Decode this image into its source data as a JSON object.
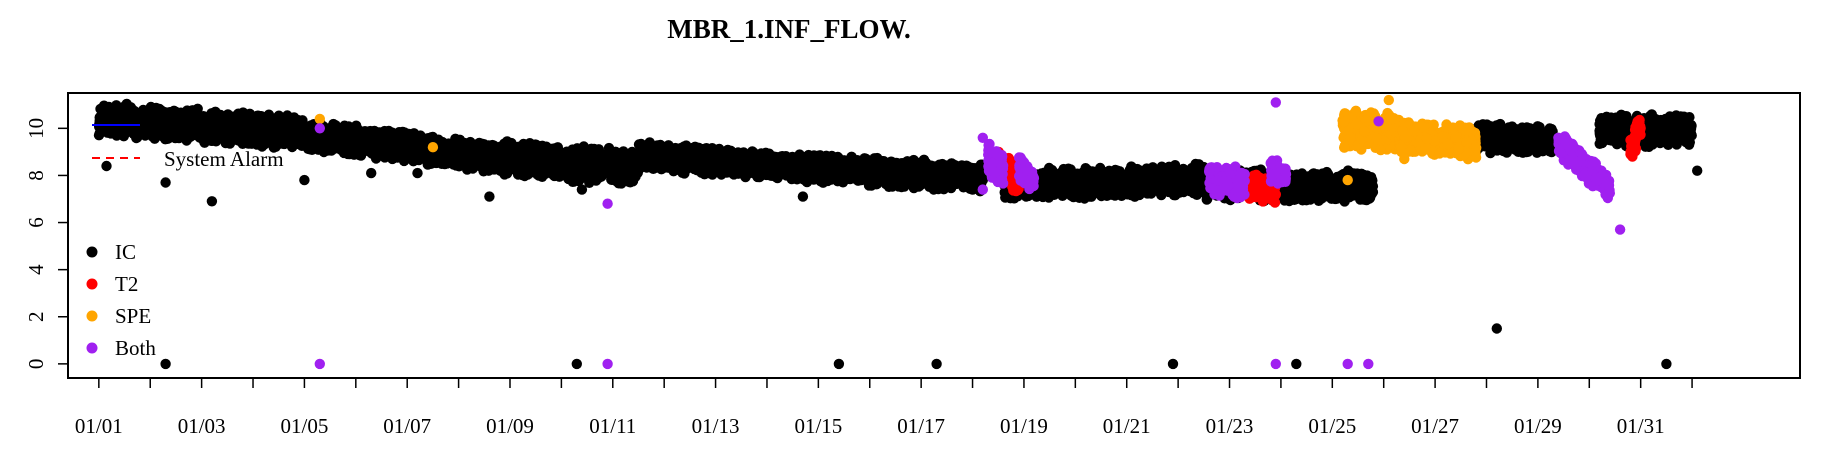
{
  "chart_data": {
    "type": "scatter",
    "title": "MBR_1.INF_FLOW.",
    "xlabel": "",
    "ylabel": "",
    "ylim": [
      -0.6,
      11.5
    ],
    "xlim": [
      -0.6,
      33.1
    ],
    "y_ticks": [
      0,
      2,
      4,
      6,
      8,
      10
    ],
    "x_tick_labels": [
      "01/01",
      "01/03",
      "01/05",
      "01/07",
      "01/09",
      "01/11",
      "01/13",
      "01/15",
      "01/17",
      "01/19",
      "01/21",
      "01/23",
      "01/25",
      "01/27",
      "01/29",
      "01/31"
    ],
    "x_tick_days": [
      0,
      1,
      2,
      3,
      4,
      5,
      6,
      7,
      8,
      9,
      10,
      11,
      12,
      13,
      14,
      15,
      16,
      17,
      18,
      19,
      20,
      21,
      22,
      23,
      24,
      25,
      26,
      27,
      28,
      29,
      30,
      31
    ],
    "x_label_days": [
      0,
      2,
      4,
      6,
      8,
      10,
      12,
      14,
      16,
      18,
      20,
      22,
      24,
      26,
      28,
      30
    ],
    "grid": false,
    "legend": {
      "placement": "left",
      "line_entries": [
        {
          "label": "System Alarm",
          "color": "#ff0000",
          "style": "dashed"
        },
        {
          "label": "",
          "color": "#0000ff",
          "style": "solid"
        }
      ],
      "point_entries": [
        {
          "label": "IC",
          "color": "#000000"
        },
        {
          "label": "T2",
          "color": "#ff0000"
        },
        {
          "label": "SPE",
          "color": "#ffa500"
        },
        {
          "label": "Both",
          "color": "#a020f0"
        }
      ]
    },
    "series": [
      {
        "name": "IC",
        "color": "#000000",
        "segments": [
          {
            "x0": 0.0,
            "x1": 4.0,
            "y0": 10.4,
            "y1": 9.8,
            "spread": 0.75
          },
          {
            "x0": 4.0,
            "x1": 7.5,
            "y0": 9.7,
            "y1": 8.8,
            "spread": 0.7
          },
          {
            "x0": 7.5,
            "x1": 10.5,
            "y0": 8.8,
            "y1": 8.3,
            "spread": 0.8
          },
          {
            "x0": 10.5,
            "x1": 14.0,
            "y0": 8.8,
            "y1": 8.3,
            "spread": 0.65
          },
          {
            "x0": 14.0,
            "x1": 17.2,
            "y0": 8.3,
            "y1": 7.9,
            "spread": 0.65
          },
          {
            "x0": 17.6,
            "x1": 21.5,
            "y0": 7.6,
            "y1": 7.8,
            "spread": 0.7
          },
          {
            "x0": 21.5,
            "x1": 24.8,
            "y0": 7.6,
            "y1": 7.5,
            "spread": 0.7
          },
          {
            "x0": 26.8,
            "x1": 28.3,
            "y0": 9.6,
            "y1": 9.5,
            "spread": 0.65
          },
          {
            "x0": 29.2,
            "x1": 31.0,
            "y0": 9.9,
            "y1": 9.9,
            "spread": 0.75
          }
        ],
        "points": [
          [
            0.15,
            8.4
          ],
          [
            1.3,
            7.7
          ],
          [
            2.2,
            6.9
          ],
          [
            4.0,
            7.8
          ],
          [
            5.3,
            8.1
          ],
          [
            6.2,
            8.1
          ],
          [
            7.6,
            7.1
          ],
          [
            9.4,
            7.4
          ],
          [
            13.7,
            7.1
          ],
          [
            31.1,
            8.2
          ],
          [
            1.3,
            0.0
          ],
          [
            9.3,
            0.0
          ],
          [
            14.4,
            0.0
          ],
          [
            16.3,
            0.0
          ],
          [
            20.9,
            0.0
          ],
          [
            23.3,
            0.0
          ],
          [
            27.2,
            1.5
          ],
          [
            30.5,
            0.0
          ]
        ]
      },
      {
        "name": "T2",
        "color": "#ff0000",
        "segments": [
          {
            "x0": 17.5,
            "x1": 17.9,
            "y0": 8.6,
            "y1": 7.8,
            "spread": 0.7
          },
          {
            "x0": 22.2,
            "x1": 22.9,
            "y0": 7.6,
            "y1": 7.4,
            "spread": 0.6
          },
          {
            "x0": 29.8,
            "x1": 30.0,
            "y0": 9.0,
            "y1": 10.2,
            "spread": 0.6
          }
        ],
        "points": []
      },
      {
        "name": "SPE",
        "color": "#ffa500",
        "segments": [
          {
            "x0": 24.2,
            "x1": 25.3,
            "y0": 10.0,
            "y1": 9.8,
            "spread": 0.85
          },
          {
            "x0": 25.3,
            "x1": 26.8,
            "y0": 9.6,
            "y1": 9.4,
            "spread": 0.75
          }
        ],
        "points": [
          [
            4.3,
            10.4
          ],
          [
            6.5,
            9.2
          ],
          [
            24.3,
            7.8
          ],
          [
            25.1,
            11.2
          ],
          [
            25.4,
            8.7
          ],
          [
            17.4,
            8.9
          ]
        ]
      },
      {
        "name": "Both",
        "color": "#a020f0",
        "segments": [
          {
            "x0": 17.3,
            "x1": 17.6,
            "y0": 8.7,
            "y1": 8.2,
            "spread": 0.9
          },
          {
            "x0": 17.9,
            "x1": 18.2,
            "y0": 8.3,
            "y1": 7.8,
            "spread": 0.6
          },
          {
            "x0": 21.6,
            "x1": 22.3,
            "y0": 7.8,
            "y1": 7.7,
            "spread": 0.7
          },
          {
            "x0": 22.8,
            "x1": 23.1,
            "y0": 8.2,
            "y1": 8.0,
            "spread": 0.6
          },
          {
            "x0": 28.4,
            "x1": 29.4,
            "y0": 9.3,
            "y1": 7.5,
            "spread": 0.6
          }
        ],
        "points": [
          [
            4.3,
            10.0
          ],
          [
            4.3,
            0.0
          ],
          [
            9.9,
            6.8
          ],
          [
            9.9,
            0.0
          ],
          [
            17.2,
            9.6
          ],
          [
            17.2,
            7.4
          ],
          [
            22.9,
            11.1
          ],
          [
            22.9,
            0.0
          ],
          [
            24.3,
            0.0
          ],
          [
            24.7,
            0.0
          ],
          [
            24.9,
            10.3
          ],
          [
            29.6,
            5.7
          ],
          [
            28.4,
            9.6
          ]
        ]
      }
    ]
  }
}
